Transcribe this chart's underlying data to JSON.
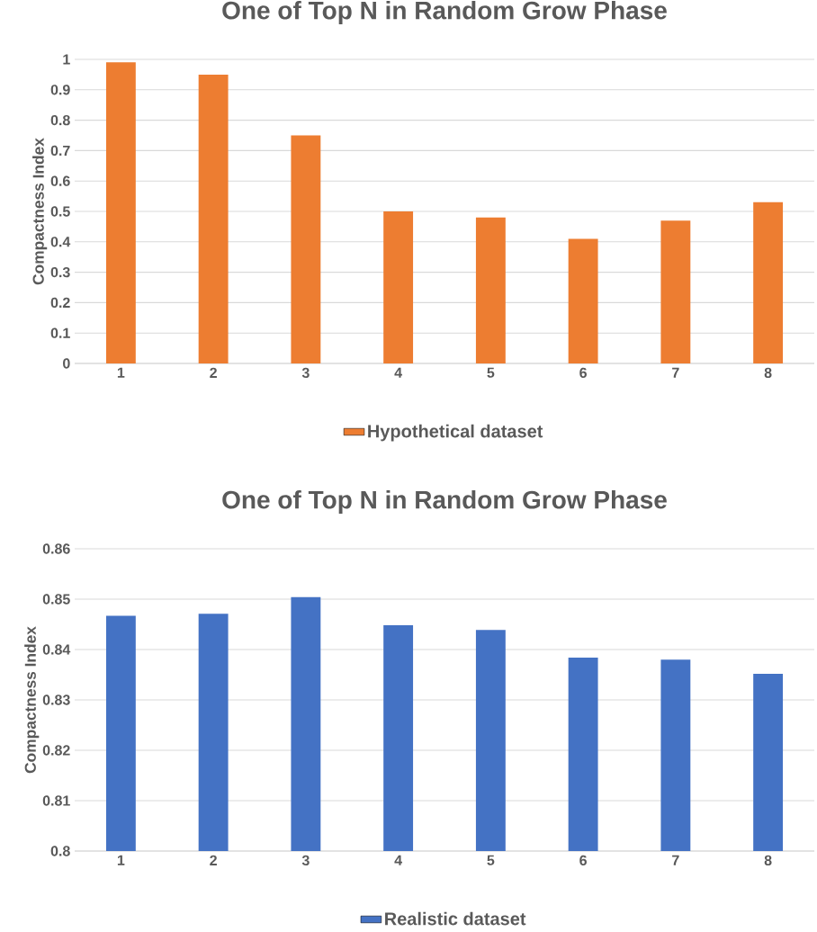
{
  "chart_data": [
    {
      "type": "bar",
      "title": "One of Top N in Random Grow Phase",
      "ylabel": "Compactness Index",
      "categories": [
        "1",
        "2",
        "3",
        "4",
        "5",
        "6",
        "7",
        "8"
      ],
      "series": [
        {
          "name": "Hypothetical dataset",
          "color": "#ed7d31",
          "values": [
            0.99,
            0.95,
            0.75,
            0.5,
            0.48,
            0.41,
            0.47,
            0.53
          ]
        }
      ],
      "ylim": [
        0,
        1
      ],
      "yticks": [
        0,
        0.1,
        0.2,
        0.3,
        0.4,
        0.5,
        0.6,
        0.7,
        0.8,
        0.9,
        1
      ],
      "grid": "y",
      "legend": "bottom"
    },
    {
      "type": "bar",
      "title": "One of Top N in Random Grow Phase",
      "ylabel": "Compactness Index",
      "categories": [
        "1",
        "2",
        "3",
        "4",
        "5",
        "6",
        "7",
        "8"
      ],
      "series": [
        {
          "name": "Realistic dataset",
          "color": "#4472c4",
          "values": [
            0.8467,
            0.8471,
            0.8504,
            0.8448,
            0.8439,
            0.8384,
            0.838,
            0.8352
          ]
        }
      ],
      "ylim": [
        0.8,
        0.86
      ],
      "yticks": [
        0.8,
        0.81,
        0.82,
        0.83,
        0.84,
        0.85,
        0.86
      ],
      "grid": "y",
      "legend": "bottom"
    }
  ]
}
